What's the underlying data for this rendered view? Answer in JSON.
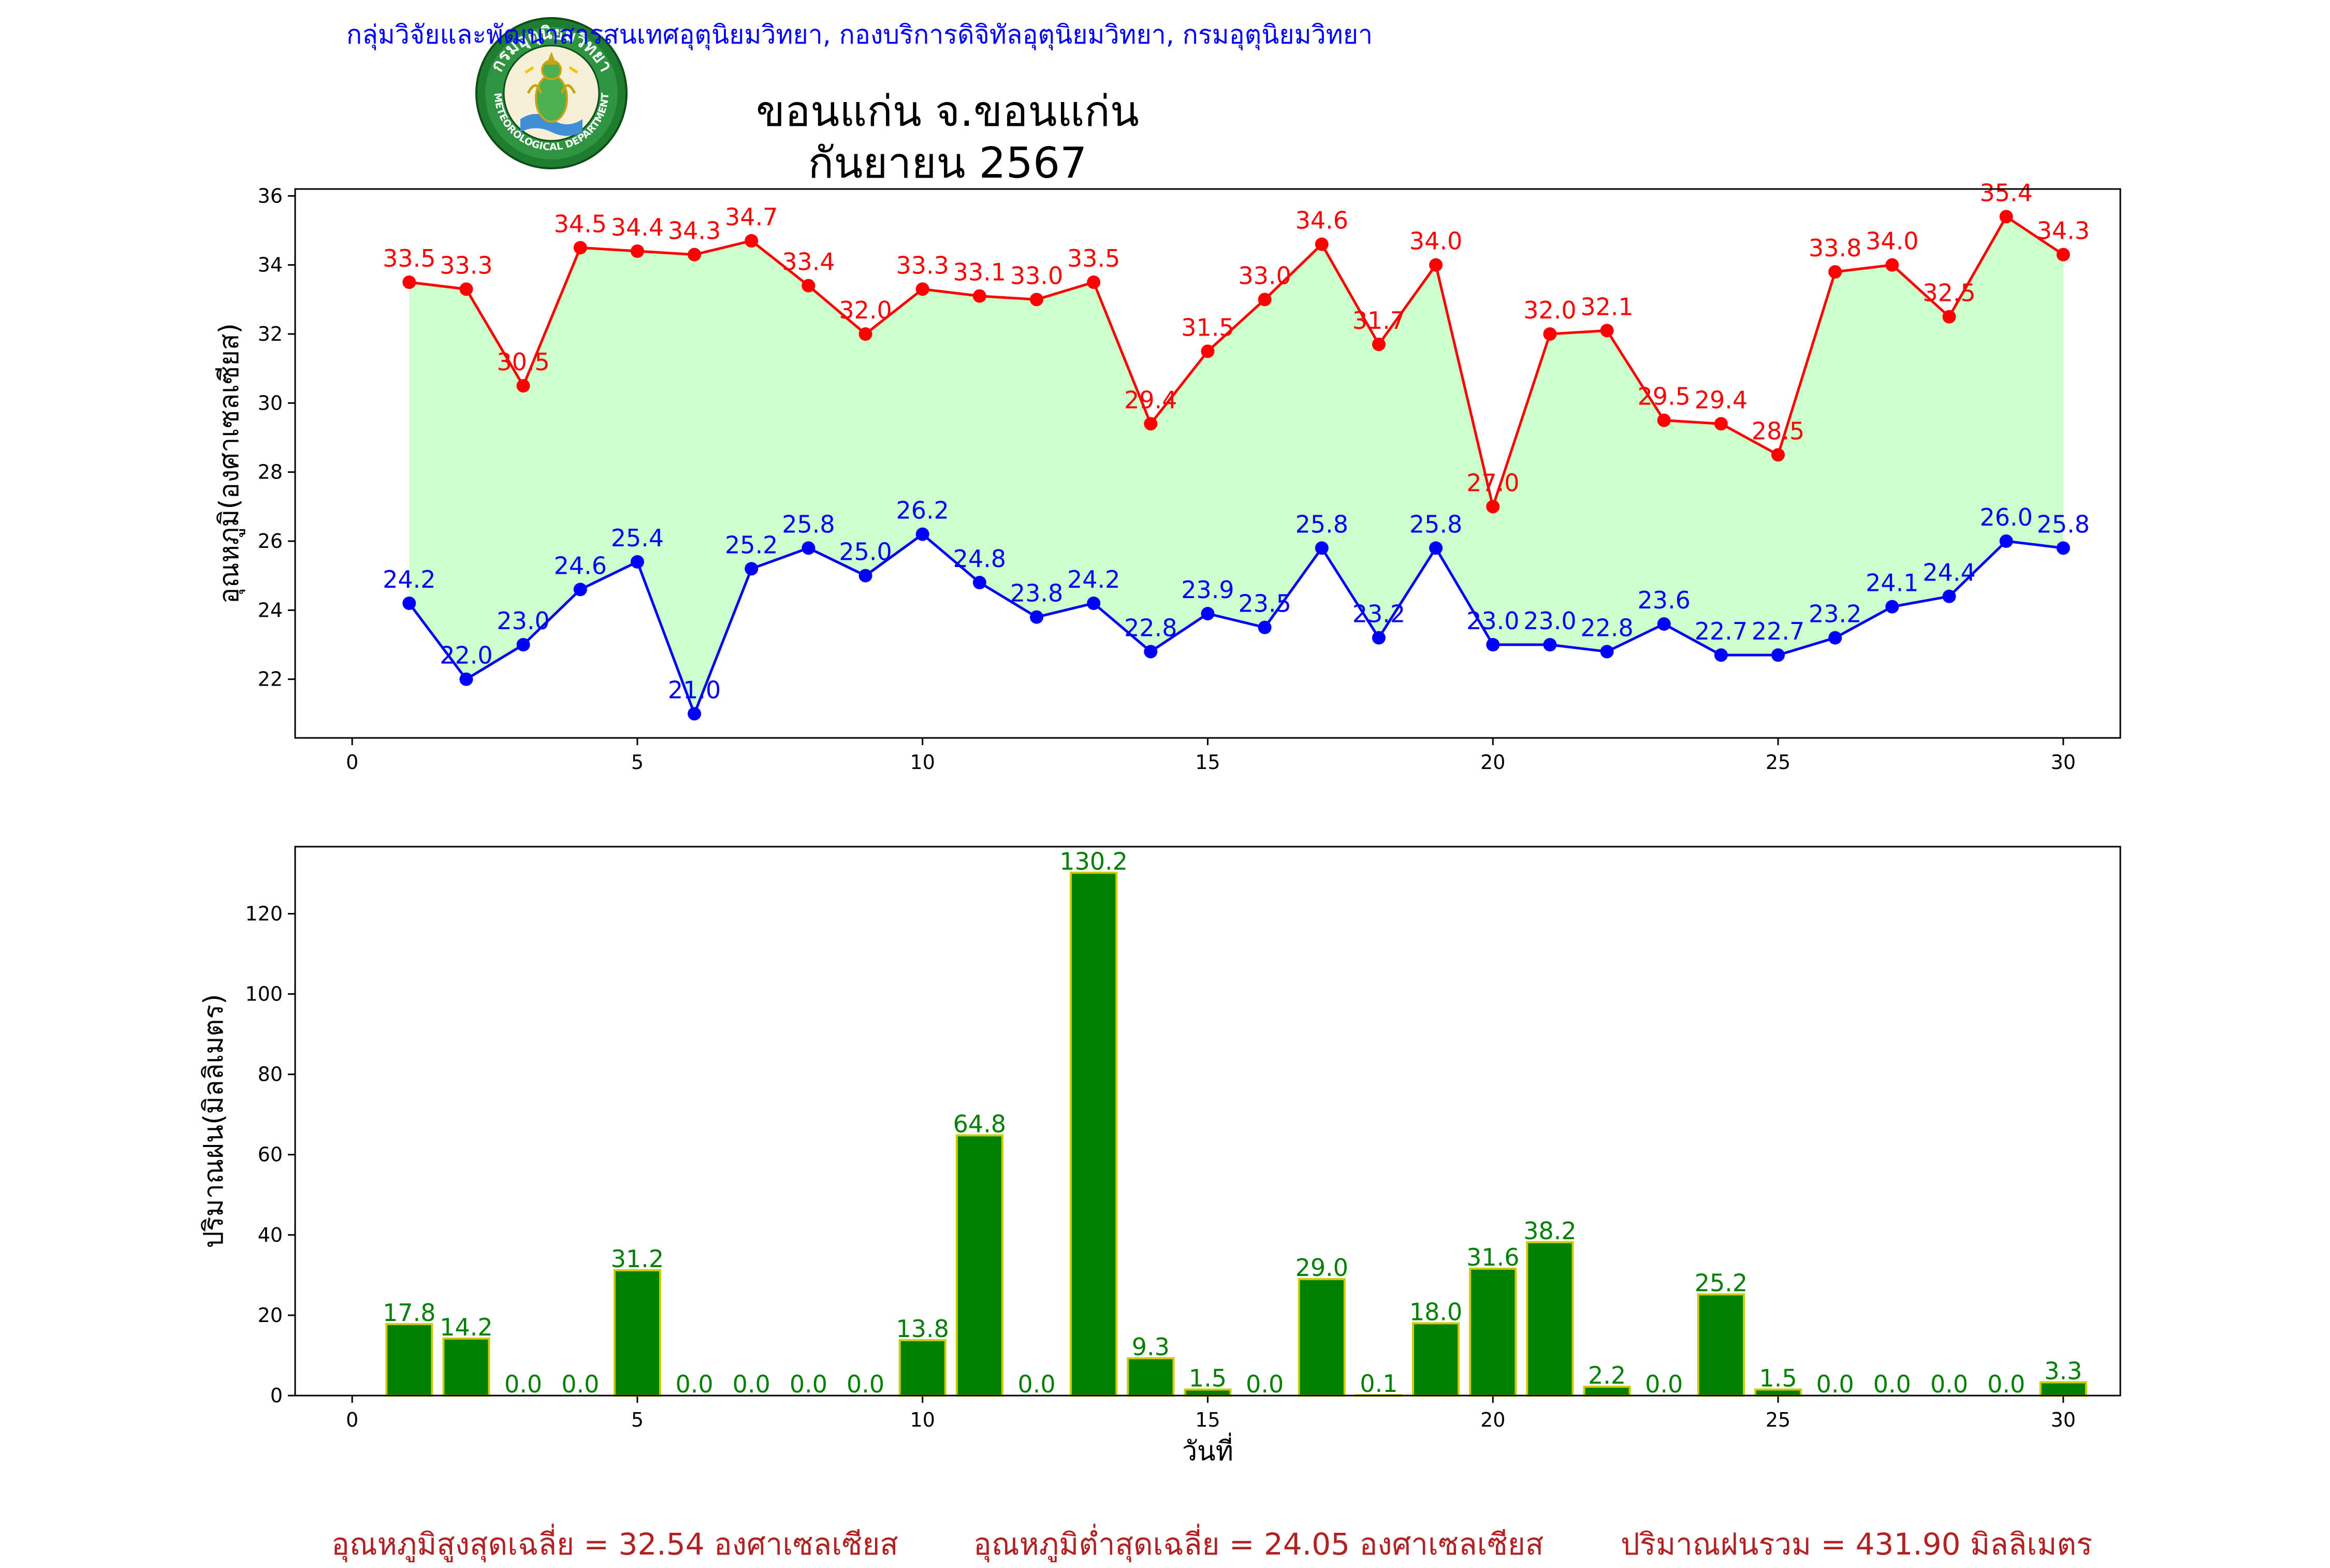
{
  "header": {
    "department": "กลุ่มวิจัยและพัฒนาสารสนเทศอุตุนิยมวิทยา, กองบริการดิจิทัลอุตุนิยมวิทยา, กรมอุตุนิยมวิทยา",
    "title_station": "ขอนแก่น จ.ขอนแก่น",
    "title_month": "กันยายน 2567",
    "logo_text_top": "กรมอุตุนิยมวิทยา",
    "logo_text_bottom": "METEOROLOGICAL DEPARTMENT"
  },
  "footer": {
    "avg_max": "อุณหภูมิสูงสุดเฉลี่ย = 32.54 องศาเซลเซียส",
    "avg_min": "อุณหภูมิต่ำสุดเฉลี่ย = 24.05 องศาเซลเซียส",
    "total_rain": "ปริมาณฝนรวม = 431.90 มิลลิเมตร"
  },
  "colors": {
    "max_line": "#ff0000",
    "min_line": "#0000ff",
    "band_fill": "#ccffcc",
    "bar_fill": "#008000",
    "bar_edge": "#cccc00",
    "bar_label": "#008000",
    "footer_text": "#b22222"
  },
  "chart_data": [
    {
      "type": "line",
      "ylabel": "อุณหภูมิ(องศาเซลเซียส)",
      "xlabel": "",
      "xlim": [
        -1,
        31
      ],
      "ylim": [
        20.3,
        36.2
      ],
      "xticks": [
        0,
        5,
        10,
        15,
        20,
        25,
        30
      ],
      "yticks": [
        22,
        24,
        26,
        28,
        30,
        32,
        34,
        36
      ],
      "grid": false,
      "x": [
        1,
        2,
        3,
        4,
        5,
        6,
        7,
        8,
        9,
        10,
        11,
        12,
        13,
        14,
        15,
        16,
        17,
        18,
        19,
        20,
        21,
        22,
        23,
        24,
        25,
        26,
        27,
        28,
        29,
        30
      ],
      "series": [
        {
          "key": "max",
          "values": [
            33.5,
            33.3,
            30.5,
            34.5,
            34.4,
            34.3,
            34.7,
            33.4,
            32.0,
            33.3,
            33.1,
            33.0,
            33.5,
            29.4,
            31.5,
            33.0,
            34.6,
            31.7,
            34.0,
            27.0,
            32.0,
            32.1,
            29.5,
            29.4,
            28.5,
            33.8,
            34.0,
            32.5,
            35.4,
            34.3
          ]
        },
        {
          "key": "min",
          "values": [
            24.2,
            22.0,
            23.0,
            24.6,
            25.4,
            21.0,
            25.2,
            25.8,
            25.0,
            26.2,
            24.8,
            23.8,
            24.2,
            22.8,
            23.9,
            23.5,
            25.8,
            23.2,
            25.8,
            23.0,
            23.0,
            22.8,
            23.6,
            22.7,
            22.7,
            23.2,
            24.1,
            24.4,
            26.0,
            25.8
          ]
        }
      ]
    },
    {
      "type": "bar",
      "ylabel": "ปริมาณฝน(มิลลิเมตร)",
      "xlabel": "วันที่",
      "xlim": [
        -1,
        31
      ],
      "ylim": [
        0,
        136.7
      ],
      "xticks": [
        0,
        5,
        10,
        15,
        20,
        25,
        30
      ],
      "yticks": [
        0,
        20,
        40,
        60,
        80,
        100,
        120
      ],
      "grid": false,
      "x": [
        1,
        2,
        3,
        4,
        5,
        6,
        7,
        8,
        9,
        10,
        11,
        12,
        13,
        14,
        15,
        16,
        17,
        18,
        19,
        20,
        21,
        22,
        23,
        24,
        25,
        26,
        27,
        28,
        29,
        30
      ],
      "values": [
        17.8,
        14.2,
        0.0,
        0.0,
        31.2,
        0.0,
        0.0,
        0.0,
        0.0,
        13.8,
        64.8,
        0.0,
        130.2,
        9.3,
        1.5,
        0.0,
        29.0,
        0.1,
        18.0,
        31.6,
        38.2,
        2.2,
        0.0,
        25.2,
        1.5,
        0.0,
        0.0,
        0.0,
        0.0,
        3.3
      ]
    }
  ]
}
